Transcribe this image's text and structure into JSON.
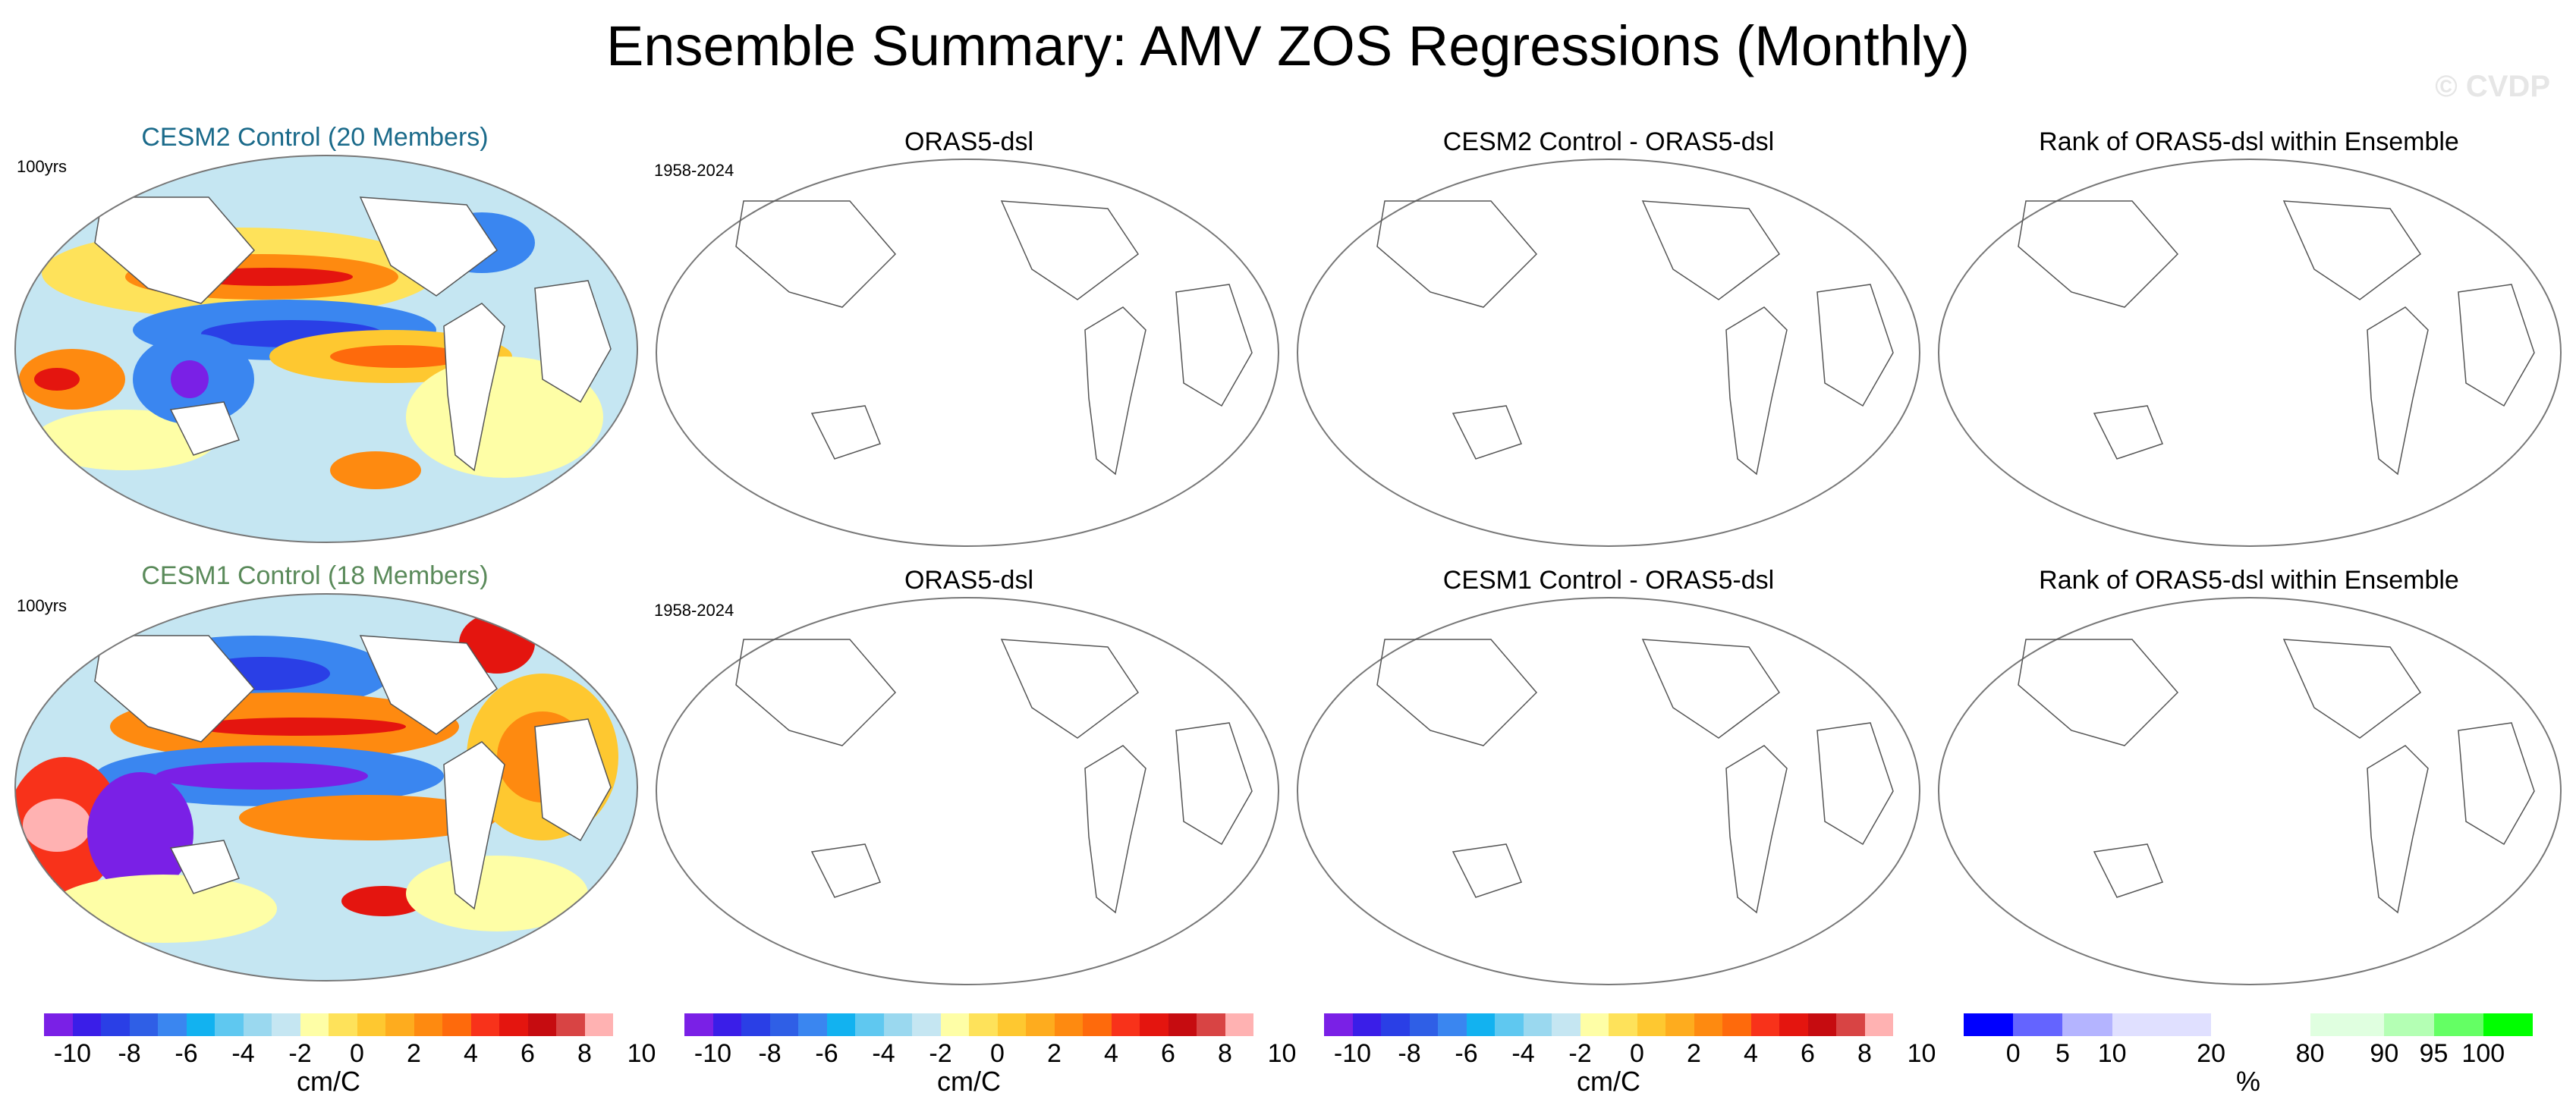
{
  "title": "Ensemble Summary: AMV ZOS Regressions (Monthly)",
  "watermark": "© CVDP",
  "rows": [
    {
      "panels": [
        {
          "title": "CESM2 Control (20 Members)",
          "title_color": "#1a6a8a",
          "side_label": "100yrs"
        },
        {
          "title": "ORAS5-dsl",
          "title_color": "#000000",
          "side_label": "1958-2024"
        },
        {
          "title": "CESM2 Control - ORAS5-dsl",
          "title_color": "#000000",
          "side_label": ""
        },
        {
          "title": "Rank of ORAS5-dsl within Ensemble",
          "title_color": "#000000",
          "side_label": ""
        }
      ]
    },
    {
      "panels": [
        {
          "title": "CESM1 Control (18 Members)",
          "title_color": "#5a8a5a",
          "side_label": "100yrs"
        },
        {
          "title": "ORAS5-dsl",
          "title_color": "#000000",
          "side_label": "1958-2024"
        },
        {
          "title": "CESM1 Control - ORAS5-dsl",
          "title_color": "#000000",
          "side_label": ""
        },
        {
          "title": "Rank of ORAS5-dsl within Ensemble",
          "title_color": "#000000",
          "side_label": ""
        }
      ]
    }
  ],
  "colorbars": [
    {
      "unit": "cm/C",
      "ticks": [
        "-10",
        "-8",
        "-6",
        "-4",
        "-2",
        "0",
        "2",
        "4",
        "6",
        "8",
        "10"
      ]
    },
    {
      "unit": "cm/C",
      "ticks": [
        "-10",
        "-8",
        "-6",
        "-4",
        "-2",
        "0",
        "2",
        "4",
        "6",
        "8",
        "10"
      ]
    },
    {
      "unit": "cm/C",
      "ticks": [
        "-10",
        "-8",
        "-6",
        "-4",
        "-2",
        "0",
        "2",
        "4",
        "6",
        "8",
        "10"
      ]
    },
    {
      "unit": "%",
      "ticks": [
        "0",
        "5",
        "10",
        "20",
        "80",
        "90",
        "95",
        "100"
      ]
    }
  ],
  "colors": {
    "diverging": [
      "#7a20e6",
      "#3a1ee8",
      "#2a3fe6",
      "#2f5fe6",
      "#3a86f0",
      "#12b2f0",
      "#5fc8f0",
      "#9ad8ef",
      "#c5e6f2",
      "#fefea6",
      "#fee25a",
      "#fec830",
      "#feac1e",
      "#fe8a10",
      "#fe6a0c",
      "#f8321a",
      "#e4150f",
      "#c60c10",
      "#d84444",
      "#ffb2b2"
    ],
    "rank": [
      "#0000ff",
      "#6464ff",
      "#b4b4ff",
      "#e0e0ff",
      "#ffffff",
      "#e0ffe0",
      "#b4ffb4",
      "#64ff64",
      "#00ff00"
    ],
    "ocean_bg": "#c5e6f2",
    "land": "#ffffff"
  }
}
